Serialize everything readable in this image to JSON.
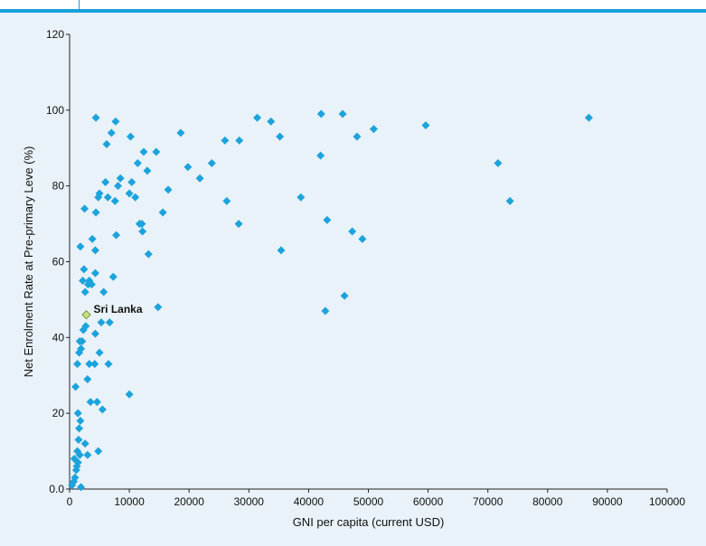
{
  "header": {
    "cut_title": ""
  },
  "chart_data": {
    "type": "scatter",
    "xlabel": "GNI per capita (current USD)",
    "ylabel": "Net Enrolment Rate at Pre-primary Leve (%)",
    "xlim": [
      0,
      100000
    ],
    "ylim": [
      0,
      120
    ],
    "xticks": [
      0,
      10000,
      20000,
      30000,
      40000,
      50000,
      60000,
      70000,
      80000,
      90000,
      100000
    ],
    "xtick_labels": [
      "0",
      "10000",
      "20000",
      "30000",
      "40000",
      "50000",
      "60000",
      "70000",
      "80000",
      "90000",
      "100000"
    ],
    "yticks": [
      0,
      20,
      40,
      60,
      80,
      100,
      120
    ],
    "ytick_labels": [
      "0.0",
      "20",
      "40",
      "60",
      "80",
      "100",
      "120"
    ],
    "grid": false,
    "colors": {
      "points": "#1ca3dc",
      "highlight_fill": "#c6e08a",
      "highlight_stroke": "#7a9a20"
    },
    "highlight": {
      "label": "Sri Lanka",
      "x": 2800,
      "y": 46
    },
    "series": [
      {
        "points": [
          [
            400,
            1
          ],
          [
            700,
            2
          ],
          [
            900,
            3
          ],
          [
            1100,
            5
          ],
          [
            1400,
            7
          ],
          [
            1700,
            9
          ],
          [
            1300,
            10
          ],
          [
            1900,
            0.5
          ],
          [
            800,
            8
          ],
          [
            1200,
            6
          ],
          [
            1500,
            13
          ],
          [
            1600,
            16
          ],
          [
            1800,
            18
          ],
          [
            1400,
            20
          ],
          [
            2600,
            12
          ],
          [
            3000,
            9
          ],
          [
            4800,
            10
          ],
          [
            1000,
            27
          ],
          [
            1300,
            33
          ],
          [
            1600,
            36
          ],
          [
            1900,
            37
          ],
          [
            2100,
            39
          ],
          [
            2300,
            42
          ],
          [
            2700,
            43
          ],
          [
            1700,
            39
          ],
          [
            3000,
            29
          ],
          [
            3300,
            33
          ],
          [
            3500,
            23
          ],
          [
            4200,
            33
          ],
          [
            4600,
            23
          ],
          [
            5000,
            36
          ],
          [
            5300,
            44
          ],
          [
            5500,
            21
          ],
          [
            6500,
            33
          ],
          [
            6700,
            44
          ],
          [
            10000,
            25
          ],
          [
            4300,
            41
          ],
          [
            2600,
            52
          ],
          [
            3100,
            54
          ],
          [
            3300,
            55
          ],
          [
            3700,
            54
          ],
          [
            2200,
            55
          ],
          [
            2400,
            58
          ],
          [
            3800,
            66
          ],
          [
            4300,
            57
          ],
          [
            4300,
            63
          ],
          [
            5700,
            52
          ],
          [
            7300,
            56
          ],
          [
            1800,
            64
          ],
          [
            2500,
            74
          ],
          [
            4400,
            73
          ],
          [
            4800,
            77
          ],
          [
            5000,
            78
          ],
          [
            6000,
            81
          ],
          [
            6400,
            77
          ],
          [
            7600,
            76
          ],
          [
            8100,
            80
          ],
          [
            8500,
            82
          ],
          [
            10000,
            78
          ],
          [
            10400,
            81
          ],
          [
            11000,
            77
          ],
          [
            12200,
            68
          ],
          [
            12100,
            70
          ],
          [
            11400,
            86
          ],
          [
            12400,
            89
          ],
          [
            14500,
            89
          ],
          [
            13200,
            62
          ],
          [
            14800,
            48
          ],
          [
            15600,
            73
          ],
          [
            16500,
            79
          ],
          [
            18600,
            94
          ],
          [
            19800,
            85
          ],
          [
            21800,
            82
          ],
          [
            23800,
            86
          ],
          [
            26300,
            76
          ],
          [
            26000,
            92
          ],
          [
            28300,
            70
          ],
          [
            28400,
            92
          ],
          [
            7800,
            67
          ],
          [
            11700,
            70
          ],
          [
            6200,
            91
          ],
          [
            7000,
            94
          ],
          [
            7700,
            97
          ],
          [
            10200,
            93
          ],
          [
            13000,
            84
          ],
          [
            4400,
            98
          ],
          [
            31400,
            98
          ],
          [
            33700,
            97
          ],
          [
            35400,
            63
          ],
          [
            35200,
            93
          ],
          [
            38700,
            77
          ],
          [
            42000,
            88
          ],
          [
            42100,
            99
          ],
          [
            42800,
            47
          ],
          [
            43100,
            71
          ],
          [
            46000,
            51
          ],
          [
            45700,
            99
          ],
          [
            47300,
            68
          ],
          [
            48100,
            93
          ],
          [
            49000,
            66
          ],
          [
            50900,
            95
          ],
          [
            59600,
            96
          ],
          [
            71700,
            86
          ],
          [
            73700,
            76
          ],
          [
            86900,
            98
          ]
        ]
      }
    ]
  }
}
